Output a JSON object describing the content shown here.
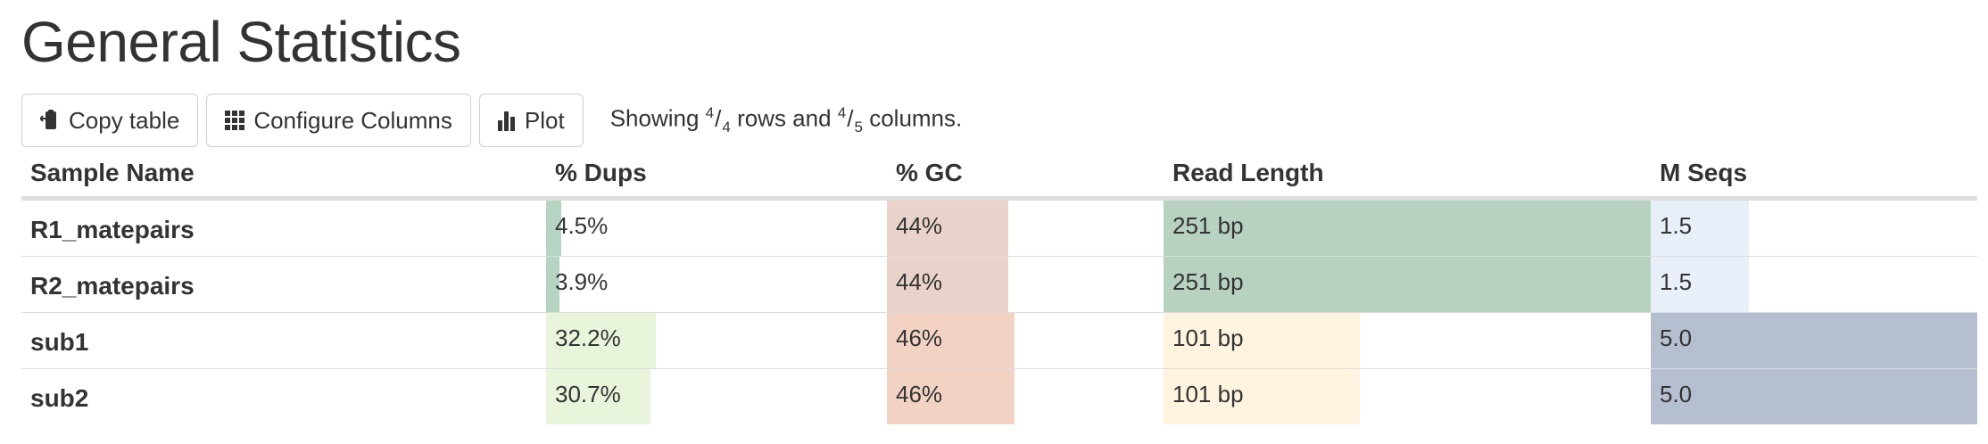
{
  "page": {
    "title": "General Statistics"
  },
  "toolbar": {
    "copy_label": "Copy table",
    "configure_label": "Configure Columns",
    "plot_label": "Plot",
    "info": {
      "prefix": "Showing",
      "rows_shown": "4",
      "rows_total": "4",
      "rows_word": "rows and",
      "cols_shown": "4",
      "cols_total": "5",
      "cols_word": "columns."
    }
  },
  "table": {
    "headers": [
      "Sample Name",
      "% Dups",
      "% GC",
      "Read Length",
      "M Seqs"
    ],
    "rows": [
      {
        "name": "R1_matepairs",
        "cells": [
          "4.5%",
          "44%",
          "251 bp",
          "1.5"
        ]
      },
      {
        "name": "R2_matepairs",
        "cells": [
          "3.9%",
          "44%",
          "251 bp",
          "1.5"
        ]
      },
      {
        "name": "sub1",
        "cells": [
          "32.2%",
          "46%",
          "101 bp",
          "5.0"
        ]
      },
      {
        "name": "sub2",
        "cells": [
          "30.7%",
          "46%",
          "101 bp",
          "5.0"
        ]
      }
    ],
    "bar_fractions": [
      [
        0.045,
        0.44,
        1.0,
        0.3
      ],
      [
        0.039,
        0.44,
        1.0,
        0.3
      ],
      [
        0.322,
        0.46,
        0.4,
        1.0
      ],
      [
        0.307,
        0.46,
        0.4,
        1.0
      ]
    ],
    "bar_colors": [
      [
        "#b6d4c2",
        "#e9d2c9",
        "#b8d2c2",
        "#e8eff8"
      ],
      [
        "#b6d4c2",
        "#e9d2c9",
        "#b8d2c2",
        "#e8eff8"
      ],
      [
        "#e8f5da",
        "#f2d3c3",
        "#fdf3de",
        "#b6bfd0"
      ],
      [
        "#e8f5da",
        "#f2d3c3",
        "#fdf3de",
        "#b6bfd0"
      ]
    ]
  }
}
